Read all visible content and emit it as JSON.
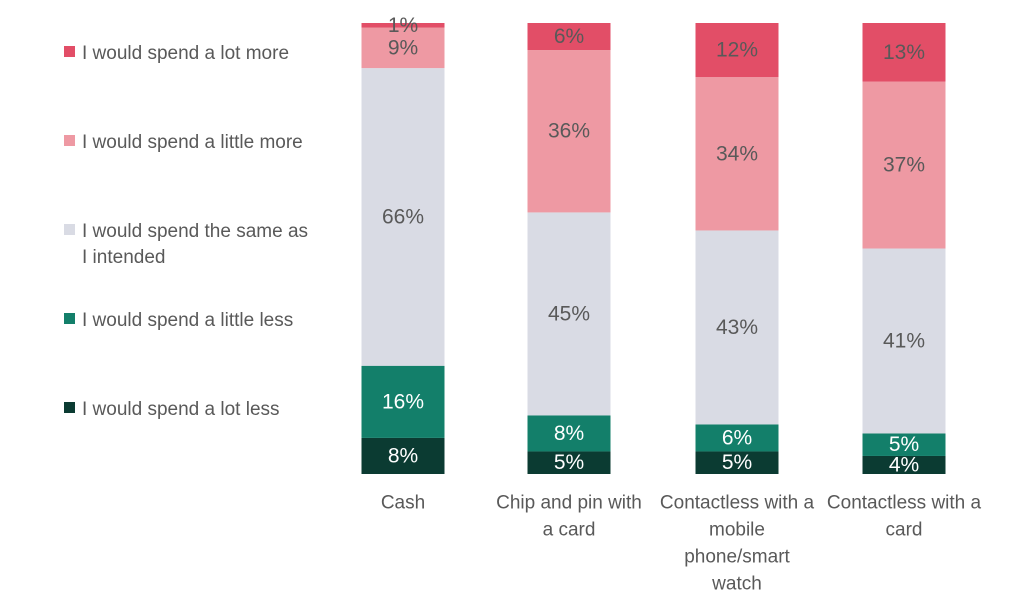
{
  "chart_data": {
    "type": "bar",
    "stacked": true,
    "percent_scale": true,
    "grid": false,
    "legend_placement": "left",
    "categories": [
      [
        "Cash"
      ],
      [
        "Chip and pin with",
        "a card"
      ],
      [
        "Contactless with a",
        "mobile",
        "phone/smart",
        "watch"
      ],
      [
        "Contactless with a",
        "card"
      ]
    ],
    "series": [
      {
        "name": "I would spend a lot less",
        "color": "#0b3b32",
        "values": [
          8,
          5,
          5,
          4
        ]
      },
      {
        "name": "I would spend a little less",
        "color": "#137f6a",
        "values": [
          16,
          8,
          6,
          5
        ]
      },
      {
        "name": "I would spend the same as I intended",
        "color": "#d9dbe4",
        "values": [
          66,
          45,
          43,
          41
        ]
      },
      {
        "name": "I would spend a little more",
        "color": "#ee99a3",
        "values": [
          9,
          36,
          34,
          37
        ]
      },
      {
        "name": "I would spend a lot more",
        "color": "#e24e67",
        "values": [
          1,
          6,
          12,
          13
        ]
      }
    ]
  },
  "legend": {
    "items": [
      {
        "lines": [
          "I would spend a lot more"
        ],
        "color": "#e24e67"
      },
      {
        "lines": [
          "I would spend a little more"
        ],
        "color": "#ee99a3"
      },
      {
        "lines": [
          "I would spend the same as",
          "I intended"
        ],
        "color": "#d9dbe4"
      },
      {
        "lines": [
          "I would spend a little less"
        ],
        "color": "#137f6a"
      },
      {
        "lines": [
          "I would spend a lot less"
        ],
        "color": "#0b3b32"
      }
    ]
  }
}
